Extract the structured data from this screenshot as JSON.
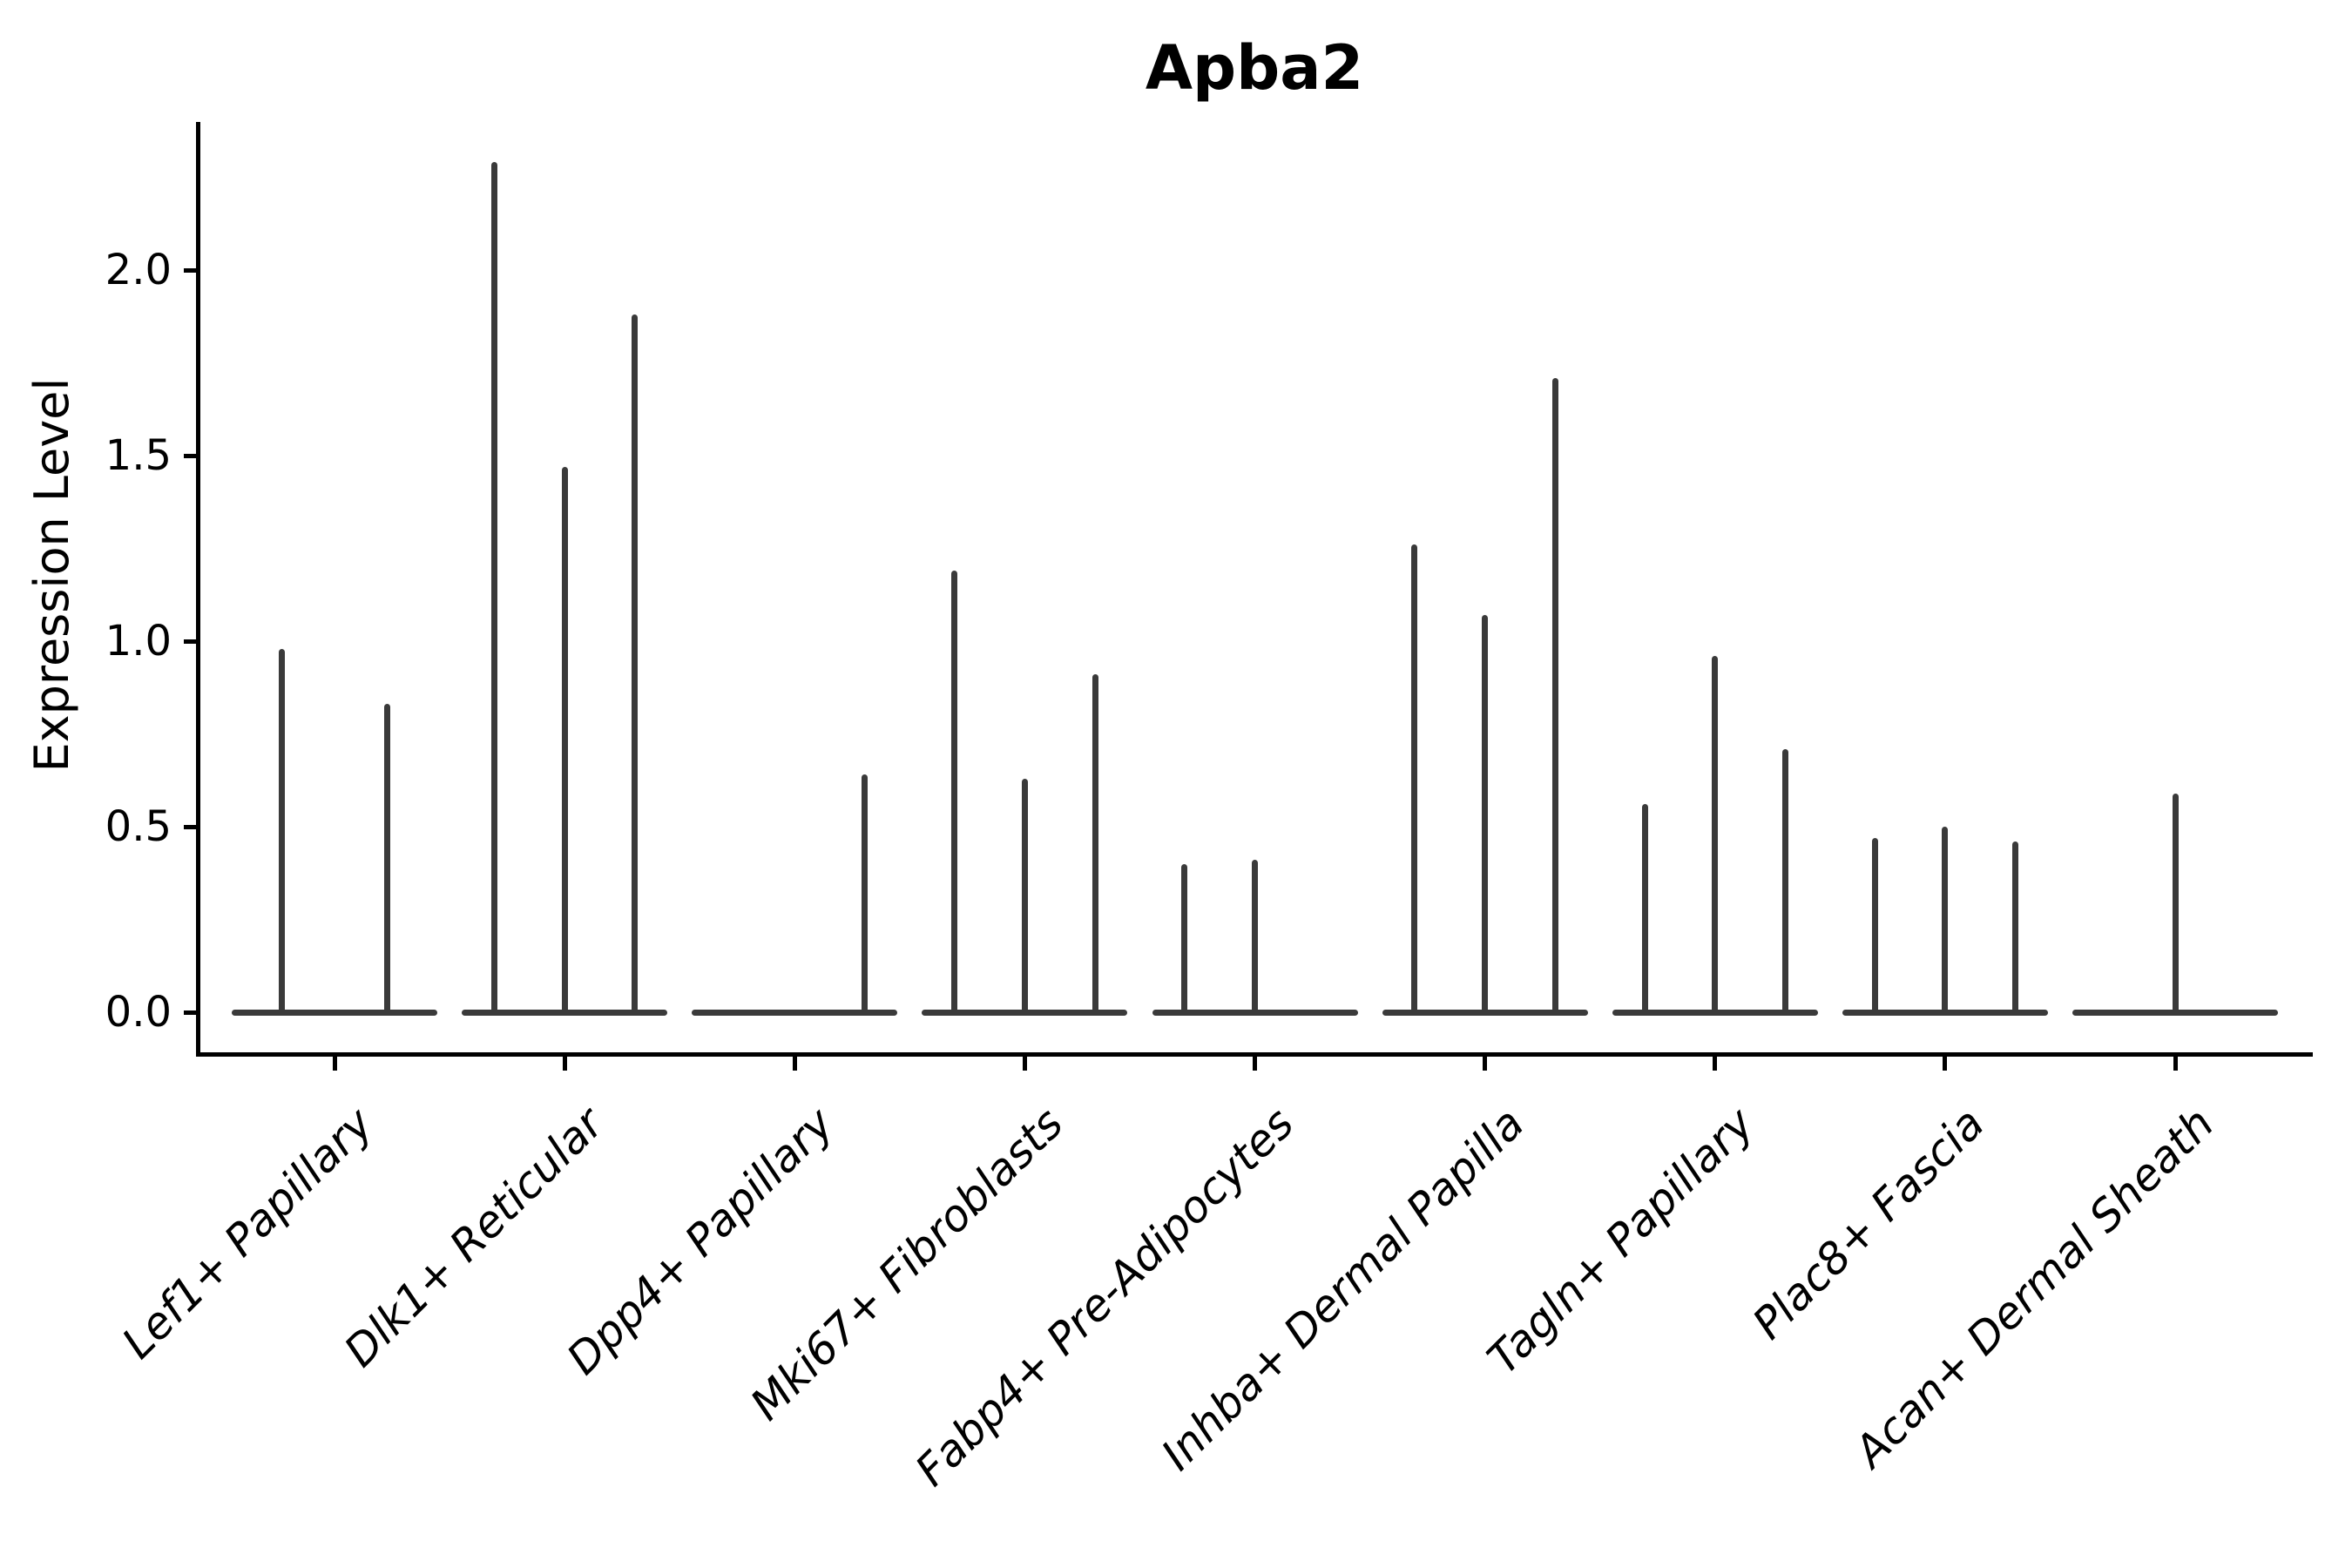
{
  "title": "Apba2",
  "ylabel": "Expression Level",
  "colors": {
    "violin": "#3a3a3a",
    "axis": "#000000",
    "text": "#000000",
    "background": "#ffffff"
  },
  "chart_data": {
    "type": "violin",
    "title": "Apba2",
    "xlabel": "",
    "ylabel": "Expression Level",
    "grid": false,
    "legend_position": "none",
    "ylim": [
      -0.12,
      2.4
    ],
    "ytick_labels": [
      "0.0",
      "0.5",
      "1.0",
      "1.5",
      "2.0"
    ],
    "ytick_values": [
      0.0,
      0.5,
      1.0,
      1.5,
      2.0
    ],
    "groups": [
      {
        "label": "Lef1+ Papillary",
        "violin_max_expression": [
          0.98,
          0.83
        ]
      },
      {
        "label": "Dlk1+ Reticular",
        "violin_max_expression": [
          2.29,
          1.47,
          1.88
        ]
      },
      {
        "label": "Dpp4+ Papillary",
        "violin_max_expression": [
          0.0,
          0.0,
          0.64
        ]
      },
      {
        "label": "Mki67+ Fibroblasts",
        "violin_max_expression": [
          1.19,
          0.63,
          0.91
        ]
      },
      {
        "label": "Fabp4+ Pre-Adipocytes",
        "violin_max_expression": [
          0.4,
          0.41,
          0.0
        ]
      },
      {
        "label": "Inhba+ Dermal Papilla",
        "violin_max_expression": [
          1.26,
          1.07,
          1.71
        ]
      },
      {
        "label": "Tagln+ Papillary",
        "violin_max_expression": [
          0.56,
          0.96,
          0.71
        ]
      },
      {
        "label": "Plac8+ Fascia",
        "violin_max_expression": [
          0.47,
          0.5,
          0.46
        ]
      },
      {
        "label": "Acan+ Dermal Sheath",
        "violin_max_expression": [
          0.0,
          0.59,
          0.0
        ]
      }
    ]
  }
}
